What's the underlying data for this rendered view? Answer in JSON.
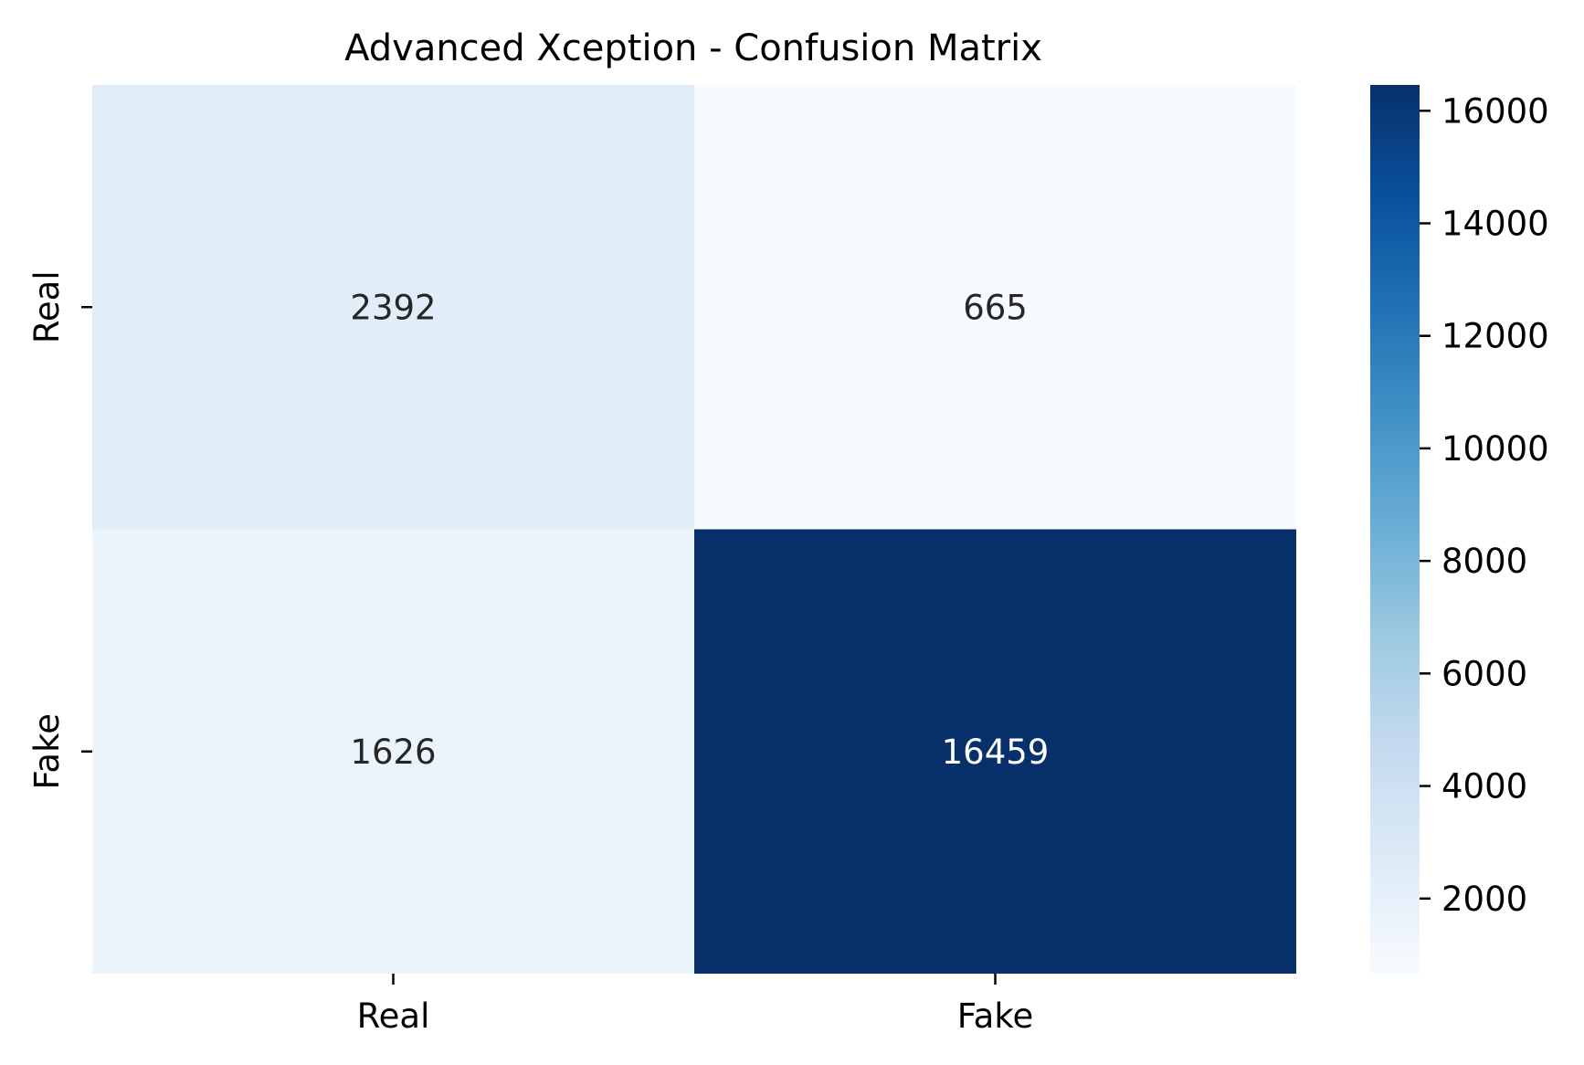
{
  "chart_data": {
    "type": "heatmap",
    "title": "Advanced Xception - Confusion Matrix",
    "xlabel": "",
    "ylabel": "",
    "x_categories": [
      "Real",
      "Fake"
    ],
    "y_categories": [
      "Real",
      "Fake"
    ],
    "matrix": [
      [
        2392,
        665
      ],
      [
        1626,
        16459
      ]
    ],
    "colormap": "Blues",
    "colorbar": {
      "ticks": [
        2000,
        4000,
        6000,
        8000,
        10000,
        12000,
        14000,
        16000
      ],
      "tick_labels": [
        "2000",
        "4000",
        "6000",
        "8000",
        "10000",
        "12000",
        "14000",
        "16000"
      ],
      "range": [
        665,
        16459
      ]
    },
    "colors": {
      "low": "#f7fbff",
      "high": "#08306b",
      "text_light": "#ffffff",
      "text_dark": "#262626"
    }
  }
}
